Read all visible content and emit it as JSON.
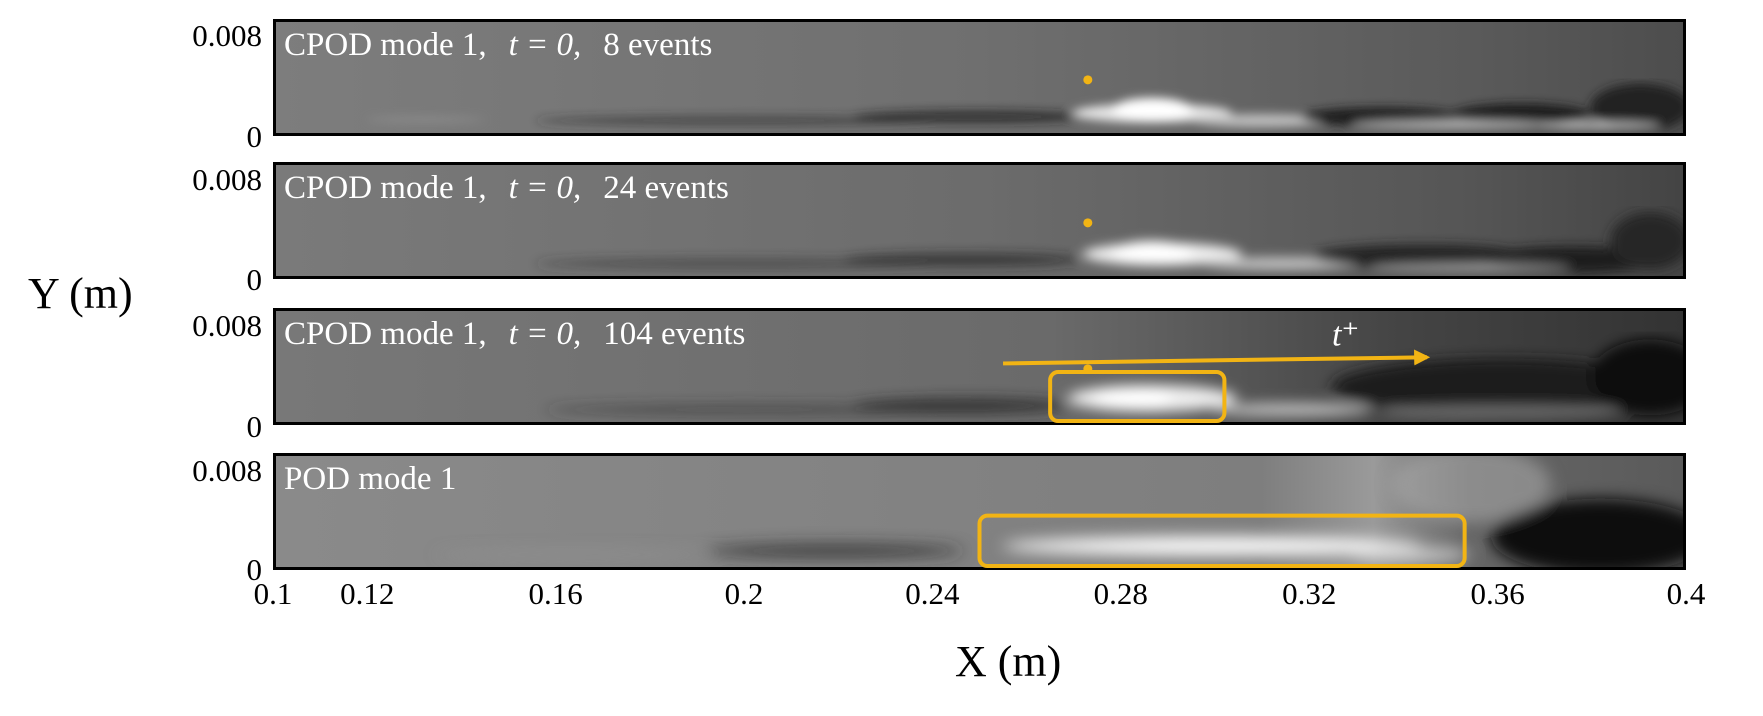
{
  "chart_data": {
    "type": "heatmap",
    "xlabel": "X (m)",
    "ylabel": "Y (m)",
    "xlim": [
      0.1,
      0.4
    ],
    "ylim": [
      0,
      0.008
    ],
    "x_ticks": [
      "0.1",
      "0.12",
      "0.16",
      "0.2",
      "0.24",
      "0.28",
      "0.32",
      "0.36",
      "0.4"
    ],
    "x_tick_values": [
      0.1,
      0.12,
      0.16,
      0.2,
      0.24,
      0.28,
      0.32,
      0.36,
      0.4
    ],
    "y_ticks": [
      "0.008",
      "0"
    ],
    "colormap": "grayscale",
    "panels": [
      {
        "mode": "CPOD mode 1,",
        "time": "t = 0,",
        "events": "8 events",
        "marker": {
          "x": 0.273,
          "y": 0.0034
        }
      },
      {
        "mode": "CPOD mode 1,",
        "time": "t = 0,",
        "events": "24 events",
        "marker": {
          "x": 0.273,
          "y": 0.0034
        }
      },
      {
        "mode": "CPOD mode 1,",
        "time": "t = 0,",
        "events": "104 events",
        "marker": {
          "x": 0.273,
          "y": 0.0034
        },
        "box": {
          "x0": 0.265,
          "x1": 0.302,
          "y0": 0.0,
          "y1": 0.0036
        },
        "arrow": {
          "x0": 0.255,
          "x1": 0.345,
          "y0": 0.0035,
          "y1": 0.0038,
          "label": "t⁺"
        }
      },
      {
        "mode": "POD mode 1",
        "time": "",
        "events": "",
        "box": {
          "x0": 0.25,
          "x1": 0.353,
          "y0": 0.0,
          "y1": 0.0037
        }
      }
    ],
    "annotation_color": "#f2b414"
  }
}
